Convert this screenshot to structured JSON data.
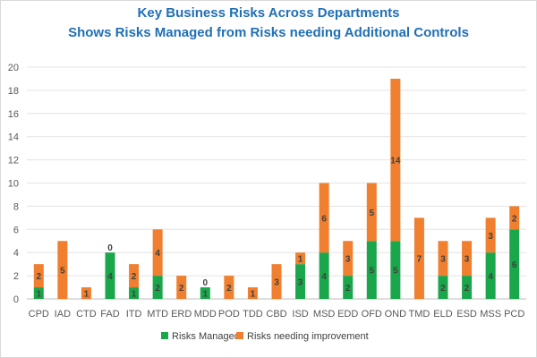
{
  "chart_data": {
    "type": "bar",
    "stacked": true,
    "title": "Key Business Risks Across Departments",
    "subtitle": "Shows Risks Managed from Risks needing Additional Controls",
    "categories": [
      "CPD",
      "IAD",
      "CTD",
      "FAD",
      "ITD",
      "MTD",
      "ERD",
      "MDD",
      "POD",
      "TDD",
      "CBD",
      "ISD",
      "MSD",
      "EDD",
      "OFD",
      "OND",
      "TMD",
      "ELD",
      "ESD",
      "MSS",
      "PCD"
    ],
    "series": [
      {
        "name": "Risks Managed",
        "color": "#1aa64a",
        "values": [
          1,
          0,
          0,
          4,
          1,
          2,
          0,
          1,
          0,
          0,
          0,
          3,
          4,
          2,
          5,
          5,
          0,
          2,
          2,
          4,
          6
        ]
      },
      {
        "name": "Risks needing improvement",
        "color": "#f07f2f",
        "values": [
          2,
          5,
          1,
          0,
          2,
          4,
          2,
          0,
          2,
          1,
          3,
          1,
          6,
          3,
          5,
          14,
          7,
          3,
          3,
          3,
          2
        ]
      }
    ],
    "ylim": [
      0,
      20
    ],
    "yticks": [
      0,
      2,
      4,
      6,
      8,
      10,
      12,
      14,
      16,
      18,
      20
    ],
    "grid": true,
    "legend_position": "bottom"
  }
}
